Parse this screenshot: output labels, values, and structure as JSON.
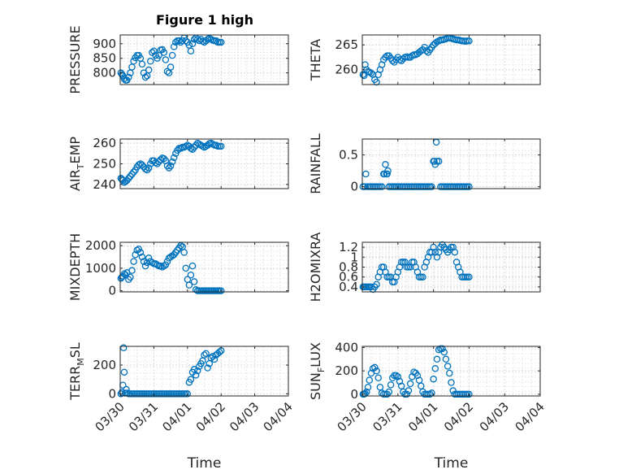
{
  "title": "Figure 1 high",
  "marker_color": "#0072BD",
  "chart_data": [
    {
      "type": "scatter",
      "ylabel": "PRESSURE",
      "xlabel": "",
      "xlim": [
        0,
        5
      ],
      "ylim": [
        760,
        930
      ],
      "yticks": [
        800,
        850,
        900
      ],
      "ytick_labels": [
        "800",
        "850",
        "900"
      ],
      "xticks": [
        0,
        1,
        2,
        3,
        4,
        5
      ],
      "xtick_labels": [],
      "grid": true,
      "x": [
        0.02,
        0.05,
        0.08,
        0.12,
        0.16,
        0.2,
        0.25,
        0.3,
        0.35,
        0.4,
        0.45,
        0.5,
        0.55,
        0.6,
        0.65,
        0.7,
        0.75,
        0.8,
        0.85,
        0.9,
        0.95,
        1.0,
        1.05,
        1.1,
        1.15,
        1.2,
        1.25,
        1.3,
        1.35,
        1.4,
        1.45,
        1.5,
        1.55,
        1.6,
        1.65,
        1.7,
        1.75,
        1.8,
        1.85,
        1.9,
        1.95,
        2.0,
        2.05,
        2.1,
        2.15,
        2.2,
        2.25,
        2.3,
        2.35,
        2.4,
        2.45,
        2.5,
        2.55,
        2.6,
        2.65,
        2.7,
        2.75,
        2.8,
        2.85,
        2.9,
        2.95,
        3.0
      ],
      "y": [
        800,
        795,
        790,
        780,
        775,
        775,
        785,
        800,
        820,
        840,
        852,
        860,
        860,
        850,
        830,
        800,
        785,
        790,
        810,
        840,
        870,
        875,
        860,
        850,
        860,
        878,
        880,
        870,
        845,
        805,
        800,
        820,
        860,
        890,
        905,
        910,
        910,
        905,
        910,
        920,
        910,
        905,
        895,
        875,
        900,
        915,
        920,
        915,
        910,
        915,
        908,
        905,
        910,
        915,
        918,
        915,
        912,
        910,
        910,
        905,
        905,
        905
      ]
    },
    {
      "type": "scatter",
      "ylabel": "THETA",
      "xlabel": "",
      "xlim": [
        0,
        5
      ],
      "ylim": [
        257,
        267
      ],
      "yticks": [
        260,
        265
      ],
      "ytick_labels": [
        "260",
        "265"
      ],
      "xticks": [
        0,
        1,
        2,
        3,
        4,
        5
      ],
      "xtick_labels": [],
      "grid": true,
      "x": [
        0.02,
        0.05,
        0.08,
        0.12,
        0.16,
        0.2,
        0.25,
        0.3,
        0.35,
        0.4,
        0.45,
        0.5,
        0.55,
        0.6,
        0.65,
        0.7,
        0.75,
        0.8,
        0.85,
        0.9,
        0.95,
        1.0,
        1.05,
        1.1,
        1.15,
        1.2,
        1.25,
        1.3,
        1.35,
        1.4,
        1.45,
        1.5,
        1.55,
        1.6,
        1.65,
        1.7,
        1.75,
        1.8,
        1.85,
        1.9,
        1.95,
        2.0,
        2.05,
        2.1,
        2.15,
        2.2,
        2.25,
        2.3,
        2.35,
        2.4,
        2.45,
        2.5,
        2.55,
        2.6,
        2.65,
        2.7,
        2.75,
        2.8,
        2.85,
        2.9,
        2.95,
        3.0
      ],
      "y": [
        259,
        258.8,
        261,
        260,
        259.6,
        259.5,
        259.3,
        259,
        258,
        257.5,
        259,
        260,
        261,
        262,
        262.5,
        262.8,
        262.8,
        262.3,
        261.8,
        261.5,
        262,
        262.5,
        262,
        261.8,
        262.2,
        262.5,
        262.6,
        262.5,
        262.5,
        262.8,
        263,
        263,
        263.2,
        263.5,
        263.8,
        264,
        264.5,
        263.8,
        263.5,
        264,
        264.5,
        265,
        265.3,
        265.6,
        265.8,
        266,
        266,
        266.1,
        266.2,
        266.4,
        266.4,
        266.3,
        266.2,
        266.1,
        266,
        266,
        265.9,
        265.8,
        265.8,
        265.7,
        265.8,
        265.8
      ]
    },
    {
      "type": "scatter",
      "ylabel": "AIR_TEMP",
      "xlabel": "",
      "xlim": [
        0,
        5
      ],
      "ylim": [
        238,
        262
      ],
      "yticks": [
        240,
        250,
        260
      ],
      "ytick_labels": [
        "240",
        "250",
        "260"
      ],
      "xticks": [
        0,
        1,
        2,
        3,
        4,
        5
      ],
      "xtick_labels": [],
      "grid": true,
      "x": [
        0.02,
        0.05,
        0.08,
        0.12,
        0.16,
        0.2,
        0.25,
        0.3,
        0.35,
        0.4,
        0.45,
        0.5,
        0.55,
        0.6,
        0.65,
        0.7,
        0.75,
        0.8,
        0.85,
        0.9,
        0.95,
        1.0,
        1.05,
        1.1,
        1.15,
        1.2,
        1.25,
        1.3,
        1.35,
        1.4,
        1.45,
        1.5,
        1.55,
        1.6,
        1.65,
        1.7,
        1.75,
        1.8,
        1.85,
        1.9,
        1.95,
        2.0,
        2.05,
        2.1,
        2.15,
        2.2,
        2.25,
        2.3,
        2.35,
        2.4,
        2.45,
        2.5,
        2.55,
        2.6,
        2.65,
        2.7,
        2.75,
        2.8,
        2.85,
        2.9,
        2.95,
        3.0
      ],
      "y": [
        243,
        242.5,
        242,
        241,
        241.5,
        242,
        243,
        244,
        245,
        246,
        247,
        248.5,
        249.5,
        250,
        249.5,
        248.5,
        247.5,
        247,
        248,
        250,
        251.5,
        251.5,
        250.5,
        250,
        251,
        252,
        252.8,
        252.5,
        251.5,
        249,
        248,
        249,
        251,
        253,
        255,
        256.5,
        257.5,
        257.5,
        258,
        258,
        258.5,
        259,
        258.5,
        257.5,
        257,
        258,
        259,
        260,
        259.5,
        259,
        258.5,
        258,
        258.5,
        259,
        259.8,
        260,
        259.5,
        259,
        259,
        258.5,
        258.5,
        258.5
      ]
    },
    {
      "type": "scatter",
      "ylabel": "RAINFALL",
      "xlabel": "",
      "xlim": [
        0,
        5
      ],
      "ylim": [
        -0.03,
        0.75
      ],
      "yticks": [
        0,
        0.5
      ],
      "ytick_labels": [
        "0",
        "0.5"
      ],
      "xticks": [
        0,
        1,
        2,
        3,
        4,
        5
      ],
      "xtick_labels": [],
      "grid": true,
      "x": [
        0.02,
        0.07,
        0.1,
        0.15,
        0.2,
        0.25,
        0.3,
        0.35,
        0.4,
        0.45,
        0.5,
        0.55,
        0.6,
        0.62,
        0.65,
        0.68,
        0.7,
        0.72,
        0.75,
        0.8,
        0.85,
        0.9,
        0.95,
        1.0,
        1.05,
        1.1,
        1.15,
        1.2,
        1.25,
        1.3,
        1.35,
        1.4,
        1.45,
        1.5,
        1.55,
        1.6,
        1.65,
        1.7,
        1.75,
        1.8,
        1.85,
        1.9,
        1.95,
        2.0,
        2.02,
        2.05,
        2.08,
        2.1,
        2.15,
        2.2,
        2.25,
        2.3,
        2.35,
        2.4,
        2.45,
        2.5,
        2.55,
        2.6,
        2.65,
        2.7,
        2.75,
        2.8,
        2.85,
        2.9,
        2.95,
        3.0
      ],
      "y": [
        0,
        0,
        0.2,
        0,
        0,
        0,
        0,
        0,
        0,
        0,
        0,
        0,
        0.2,
        0.2,
        0.35,
        0.2,
        0.2,
        0.25,
        0,
        0,
        0,
        0,
        0,
        0,
        0,
        0,
        0,
        0,
        0,
        0,
        0,
        0,
        0,
        0,
        0,
        0,
        0,
        0,
        0,
        0,
        0,
        0,
        0,
        0.4,
        0.4,
        0.35,
        0.7,
        0.4,
        0.4,
        0,
        0,
        0,
        0,
        0,
        0,
        0,
        0,
        0,
        0,
        0,
        0,
        0,
        0,
        0,
        0,
        0
      ]
    },
    {
      "type": "scatter",
      "ylabel": "MIXDEPTH",
      "xlabel": "",
      "xlim": [
        0,
        5
      ],
      "ylim": [
        -50,
        2150
      ],
      "yticks": [
        0,
        1000,
        2000
      ],
      "ytick_labels": [
        "0",
        "1000",
        "2000"
      ],
      "xticks": [
        0,
        1,
        2,
        3,
        4,
        5
      ],
      "xtick_labels": [],
      "grid": true,
      "x": [
        0.02,
        0.05,
        0.08,
        0.12,
        0.16,
        0.2,
        0.25,
        0.3,
        0.35,
        0.4,
        0.45,
        0.5,
        0.55,
        0.6,
        0.65,
        0.7,
        0.75,
        0.8,
        0.85,
        0.9,
        0.95,
        1.0,
        1.05,
        1.1,
        1.15,
        1.2,
        1.25,
        1.3,
        1.35,
        1.4,
        1.45,
        1.5,
        1.55,
        1.6,
        1.65,
        1.7,
        1.75,
        1.8,
        1.85,
        1.9,
        1.95,
        2.0,
        2.05,
        2.1,
        2.15,
        2.2,
        2.25,
        2.3,
        2.35,
        2.4,
        2.45,
        2.5,
        2.55,
        2.6,
        2.65,
        2.7,
        2.75,
        2.8,
        2.85,
        2.9,
        2.95,
        3.0
      ],
      "y": [
        550,
        600,
        650,
        750,
        700,
        800,
        500,
        600,
        900,
        1300,
        1600,
        1800,
        1850,
        1700,
        1500,
        1300,
        1100,
        1250,
        1450,
        1300,
        1250,
        1200,
        1200,
        1150,
        1100,
        1100,
        1050,
        1100,
        1150,
        1300,
        1450,
        1500,
        1550,
        1600,
        1700,
        1800,
        1900,
        2000,
        1950,
        1700,
        1000,
        500,
        250,
        700,
        1100,
        400,
        50,
        0,
        0,
        0,
        0,
        0,
        0,
        0,
        0,
        0,
        0,
        0,
        0,
        0,
        0,
        0
      ]
    },
    {
      "type": "scatter",
      "ylabel": "H2OMIXRA",
      "xlabel": "",
      "xlim": [
        0,
        5
      ],
      "ylim": [
        0.3,
        1.3
      ],
      "yticks": [
        0.4,
        0.6,
        0.8,
        1,
        1.2
      ],
      "ytick_labels": [
        "0.4",
        "0.6",
        "0.8",
        "1",
        "1.2"
      ],
      "xticks": [
        0,
        1,
        2,
        3,
        4,
        5
      ],
      "xtick_labels": [],
      "grid": true,
      "x": [
        0.02,
        0.05,
        0.08,
        0.12,
        0.16,
        0.2,
        0.25,
        0.3,
        0.35,
        0.4,
        0.45,
        0.5,
        0.55,
        0.6,
        0.65,
        0.7,
        0.75,
        0.8,
        0.85,
        0.9,
        0.95,
        1.0,
        1.05,
        1.1,
        1.15,
        1.2,
        1.25,
        1.3,
        1.35,
        1.4,
        1.45,
        1.5,
        1.55,
        1.6,
        1.65,
        1.7,
        1.75,
        1.8,
        1.85,
        1.9,
        1.95,
        2.0,
        2.05,
        2.1,
        2.15,
        2.2,
        2.25,
        2.3,
        2.35,
        2.4,
        2.45,
        2.5,
        2.55,
        2.6,
        2.65,
        2.7,
        2.75,
        2.8,
        2.85,
        2.9,
        2.95,
        3.0
      ],
      "y": [
        0.4,
        0.4,
        0.4,
        0.4,
        0.4,
        0.4,
        0.4,
        0.35,
        0.4,
        0.45,
        0.6,
        0.7,
        0.8,
        0.8,
        0.7,
        0.6,
        0.6,
        0.6,
        0.5,
        0.5,
        0.6,
        0.7,
        0.8,
        0.9,
        0.9,
        0.9,
        0.8,
        0.8,
        0.8,
        0.9,
        0.9,
        0.8,
        0.7,
        0.6,
        0.6,
        0.6,
        0.8,
        0.9,
        1.0,
        1.1,
        1.1,
        1.2,
        1.1,
        1.0,
        1.1,
        1.2,
        1.25,
        1.2,
        1.15,
        1.1,
        1.15,
        1.2,
        1.2,
        1.1,
        0.9,
        0.8,
        0.7,
        0.6,
        0.6,
        0.6,
        0.6,
        0.6
      ]
    },
    {
      "type": "scatter",
      "ylabel": "TERR_MSL",
      "xlabel": "Time",
      "xlim": [
        0,
        5
      ],
      "ylim": [
        -15,
        330
      ],
      "yticks": [
        0,
        200
      ],
      "ytick_labels": [
        "0",
        "200"
      ],
      "xticks": [
        0,
        1,
        2,
        3,
        4,
        5
      ],
      "xtick_labels": [
        "03/30",
        "03/31",
        "04/01",
        "04/02",
        "04/03",
        "04/04"
      ],
      "grid": true,
      "x": [
        0.02,
        0.05,
        0.08,
        0.1,
        0.12,
        0.15,
        0.18,
        0.2,
        0.25,
        0.3,
        0.35,
        0.4,
        0.45,
        0.5,
        0.55,
        0.6,
        0.65,
        0.7,
        0.75,
        0.8,
        0.85,
        0.9,
        0.95,
        1.0,
        1.05,
        1.1,
        1.15,
        1.2,
        1.25,
        1.3,
        1.35,
        1.4,
        1.45,
        1.5,
        1.55,
        1.6,
        1.65,
        1.7,
        1.75,
        1.8,
        1.85,
        1.9,
        1.95,
        2.0,
        2.05,
        2.1,
        2.15,
        2.2,
        2.25,
        2.3,
        2.35,
        2.4,
        2.45,
        2.5,
        2.55,
        2.6,
        2.65,
        2.7,
        2.75,
        2.8,
        2.85,
        2.9,
        2.95,
        3.0
      ],
      "y": [
        0,
        10,
        60,
        320,
        150,
        5,
        30,
        5,
        0,
        0,
        0,
        0,
        0,
        0,
        0,
        0,
        0,
        0,
        0,
        0,
        0,
        0,
        0,
        0,
        0,
        0,
        0,
        0,
        0,
        0,
        0,
        0,
        0,
        0,
        0,
        0,
        0,
        0,
        0,
        0,
        0,
        0,
        0,
        0,
        80,
        100,
        150,
        170,
        130,
        160,
        190,
        210,
        230,
        270,
        280,
        180,
        210,
        250,
        260,
        240,
        270,
        280,
        290,
        300
      ]
    },
    {
      "type": "scatter",
      "ylabel": "SUN_FLUX",
      "xlabel": "Time",
      "xlim": [
        0,
        5
      ],
      "ylim": [
        -15,
        410
      ],
      "yticks": [
        0,
        200,
        400
      ],
      "ytick_labels": [
        "0",
        "200",
        "400"
      ],
      "xticks": [
        0,
        1,
        2,
        3,
        4,
        5
      ],
      "xtick_labels": [
        "03/30",
        "03/31",
        "04/01",
        "04/02",
        "04/03",
        "04/04"
      ],
      "grid": true,
      "x": [
        0.02,
        0.05,
        0.08,
        0.12,
        0.16,
        0.2,
        0.25,
        0.3,
        0.35,
        0.4,
        0.45,
        0.5,
        0.55,
        0.6,
        0.65,
        0.7,
        0.75,
        0.8,
        0.85,
        0.9,
        0.95,
        1.0,
        1.05,
        1.1,
        1.15,
        1.2,
        1.25,
        1.3,
        1.35,
        1.4,
        1.45,
        1.5,
        1.55,
        1.6,
        1.65,
        1.7,
        1.75,
        1.8,
        1.85,
        1.9,
        1.95,
        2.0,
        2.05,
        2.1,
        2.15,
        2.2,
        2.25,
        2.3,
        2.35,
        2.4,
        2.45,
        2.5,
        2.55,
        2.6,
        2.65,
        2.7,
        2.75,
        2.8,
        2.85,
        2.9,
        2.95,
        3.0
      ],
      "y": [
        0,
        0,
        5,
        20,
        60,
        120,
        180,
        220,
        230,
        200,
        140,
        60,
        10,
        0,
        0,
        0,
        20,
        80,
        140,
        160,
        160,
        150,
        110,
        70,
        20,
        0,
        0,
        30,
        90,
        150,
        190,
        180,
        160,
        120,
        70,
        20,
        0,
        0,
        0,
        0,
        10,
        130,
        220,
        300,
        380,
        390,
        390,
        360,
        300,
        240,
        180,
        100,
        30,
        0,
        0,
        0,
        0,
        0,
        0,
        0,
        0,
        0
      ]
    }
  ]
}
